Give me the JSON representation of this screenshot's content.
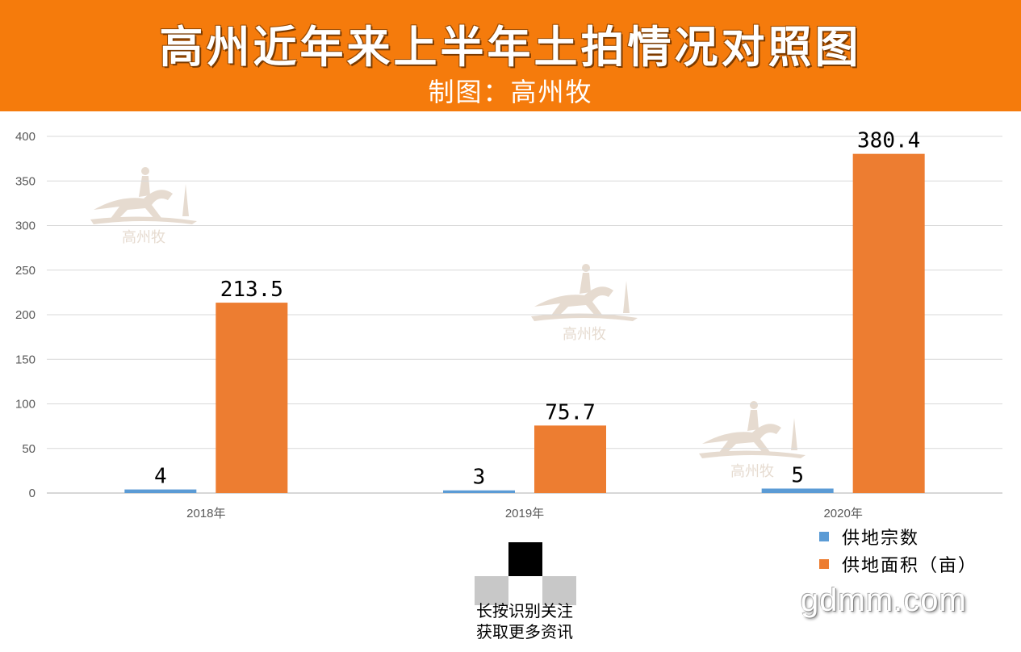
{
  "header": {
    "title": "高州近年来上半年土拍情况对照图",
    "subtitle": "制图：高州牧"
  },
  "chart_data": {
    "type": "bar",
    "categories": [
      "2018年",
      "2019年",
      "2020年"
    ],
    "series": [
      {
        "name": "供地宗数",
        "values": [
          4,
          3,
          5
        ],
        "color": "#5b9bd5",
        "labels": [
          "4",
          "3",
          "5"
        ]
      },
      {
        "name": "供地面积（亩）",
        "values": [
          213.5,
          75.7,
          380.4
        ],
        "color": "#ed7d31",
        "labels": [
          "213.5",
          "75.7",
          "380.4"
        ]
      }
    ],
    "yticks": [
      "0",
      "50",
      "100",
      "150",
      "200",
      "250",
      "300",
      "350",
      "400"
    ],
    "ylim": [
      0,
      400
    ],
    "grid": true,
    "legend": "bottom-right"
  },
  "watermark": {
    "logo_text": "高州牧",
    "qr_caption_line1": "长按识别关注",
    "qr_caption_line2": "获取更多资讯",
    "site": "gdmm.com"
  }
}
